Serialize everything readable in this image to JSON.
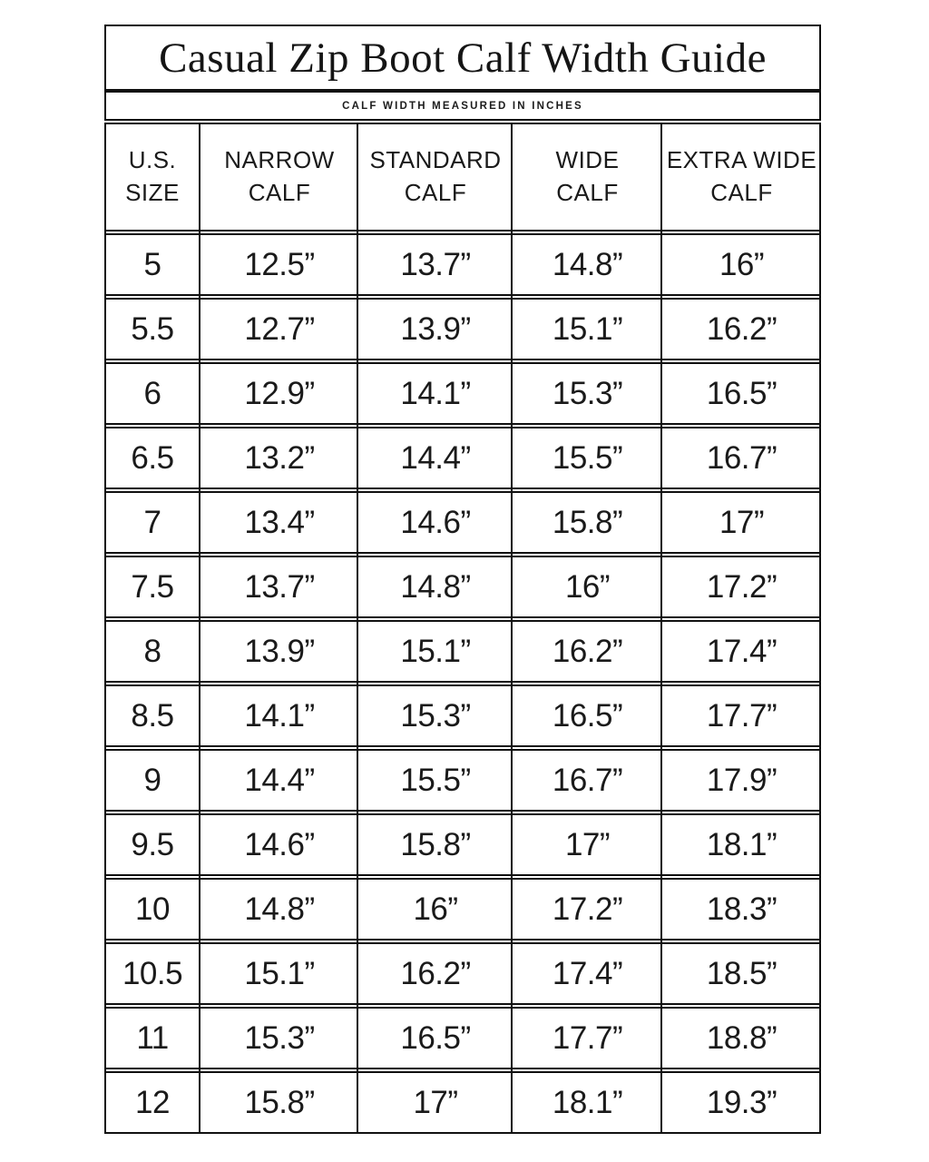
{
  "title": "Casual Zip Boot Calf Width Guide",
  "subtitle": "CALF WIDTH MEASURED IN INCHES",
  "table": {
    "headers": [
      {
        "line1": "U.S.",
        "line2": "SIZE"
      },
      {
        "line1": "NARROW",
        "line2": "CALF"
      },
      {
        "line1": "STANDARD",
        "line2": "CALF"
      },
      {
        "line1": "WIDE",
        "line2": "CALF"
      },
      {
        "line1": "EXTRA WIDE",
        "line2": "CALF"
      }
    ],
    "rows": [
      [
        "5",
        "12.5”",
        "13.7”",
        "14.8”",
        "16”"
      ],
      [
        "5.5",
        "12.7”",
        "13.9”",
        "15.1”",
        "16.2”"
      ],
      [
        "6",
        "12.9”",
        "14.1”",
        "15.3”",
        "16.5”"
      ],
      [
        "6.5",
        "13.2”",
        "14.4”",
        "15.5”",
        "16.7”"
      ],
      [
        "7",
        "13.4”",
        "14.6”",
        "15.8”",
        "17”"
      ],
      [
        "7.5",
        "13.7”",
        "14.8”",
        "16”",
        "17.2”"
      ],
      [
        "8",
        "13.9”",
        "15.1”",
        "16.2”",
        "17.4”"
      ],
      [
        "8.5",
        "14.1”",
        "15.3”",
        "16.5”",
        "17.7”"
      ],
      [
        "9",
        "14.4”",
        "15.5”",
        "16.7”",
        "17.9”"
      ],
      [
        "9.5",
        "14.6”",
        "15.8”",
        "17”",
        "18.1”"
      ],
      [
        "10",
        "14.8”",
        "16”",
        "17.2”",
        "18.3”"
      ],
      [
        "10.5",
        "15.1”",
        "16.2”",
        "17.4”",
        "18.5”"
      ],
      [
        "11",
        "15.3”",
        "16.5”",
        "17.7”",
        "18.8”"
      ],
      [
        "12",
        "15.8”",
        "17”",
        "18.1”",
        "19.3”"
      ]
    ]
  },
  "colors": {
    "background": "#ffffff",
    "border": "#111111",
    "text": "#1a1a1a"
  }
}
